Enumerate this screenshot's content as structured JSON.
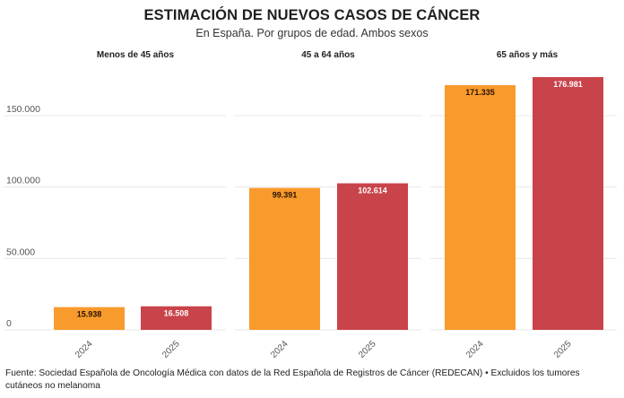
{
  "chart_data": {
    "type": "bar",
    "title": "ESTIMACIÓN DE NUEVOS CASOS DE CÁNCER",
    "subtitle": "En España. Por grupos de edad. Ambos sexos",
    "xlabel": "",
    "ylabel": "",
    "ylim": [
      0,
      180000
    ],
    "yticks": [
      0,
      50000,
      100000,
      150000
    ],
    "ytick_labels": [
      "0",
      "50.000",
      "100.000",
      "150.000"
    ],
    "grid": true,
    "categories": [
      "2024",
      "2025"
    ],
    "panels": [
      {
        "title": "Menos de 45 años",
        "values": [
          15938,
          16508
        ],
        "labels": [
          "15.938",
          "16.508"
        ]
      },
      {
        "title": "45 a 64 años",
        "values": [
          99391,
          102614
        ],
        "labels": [
          "99.391",
          "102.614"
        ]
      },
      {
        "title": "65 años y más",
        "values": [
          171335,
          176981
        ],
        "labels": [
          "171.335",
          "176.981"
        ]
      }
    ],
    "series_colors": {
      "2024": "#f99a2c",
      "2025": "#c9434a"
    },
    "label_colors": {
      "2024": "#2a1200",
      "2025": "#ffffff"
    }
  },
  "footer": "Fuente: Sociedad Española de Oncología Médica con datos de la Red Española de Registros de Cáncer (REDECAN) • Excluidos los tumores cutáneos no melanoma"
}
